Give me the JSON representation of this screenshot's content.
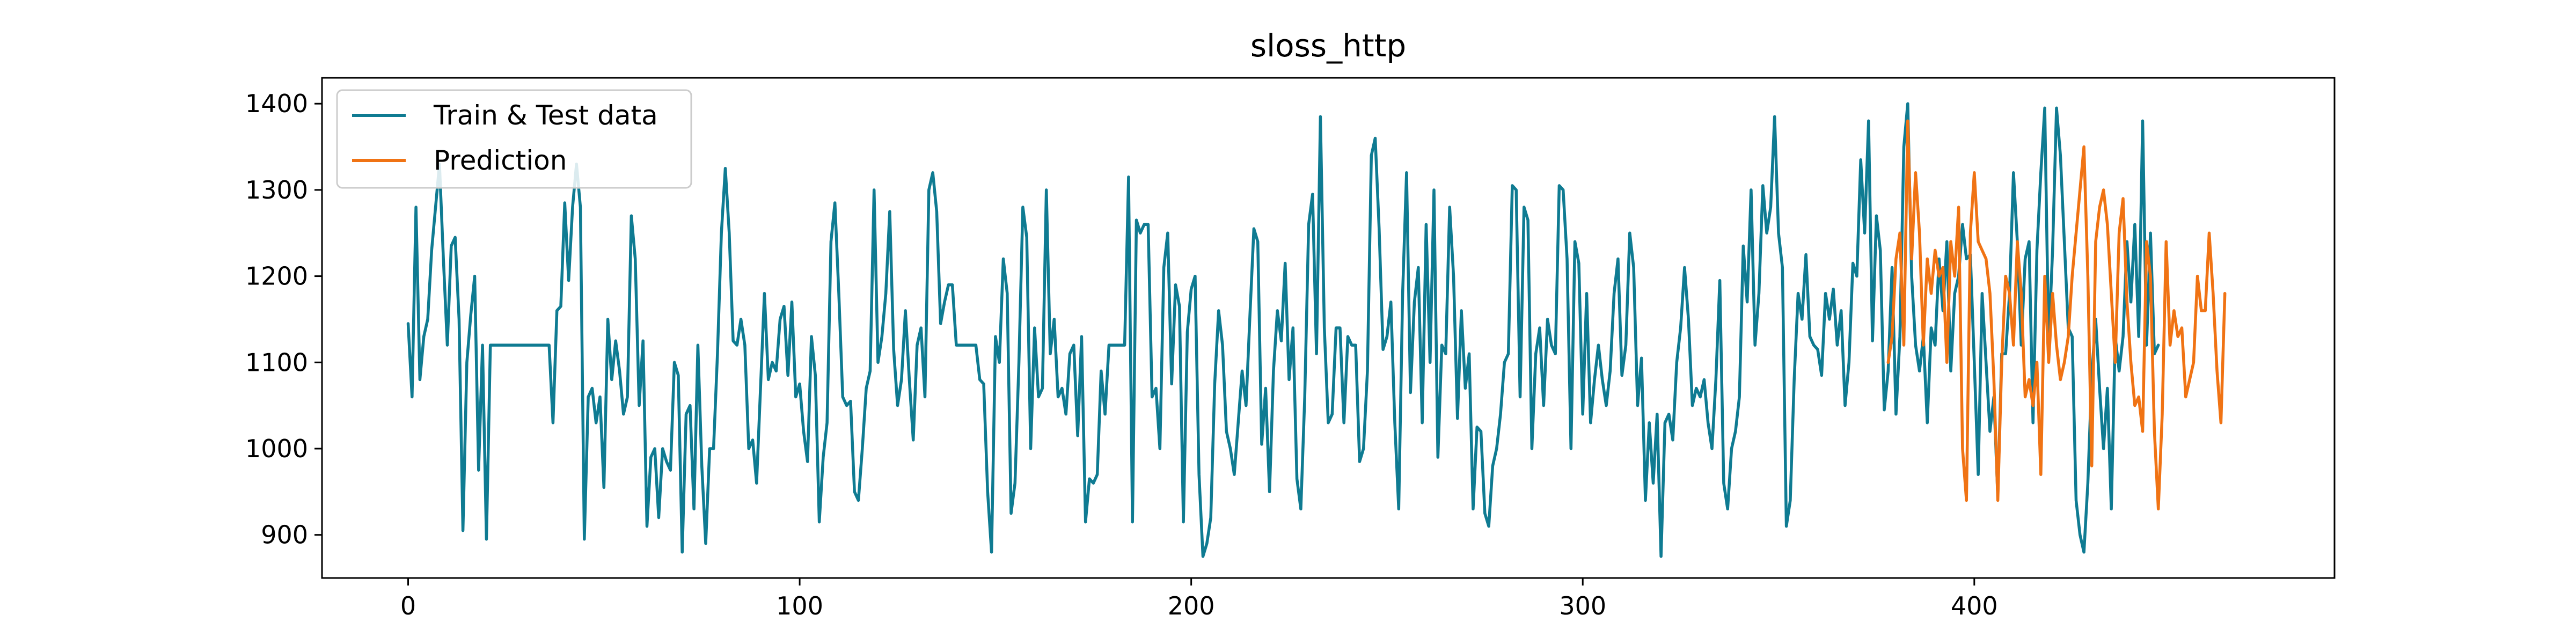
{
  "chart_data": {
    "type": "line",
    "title": "sloss_http",
    "xlabel": "",
    "ylabel": "",
    "xlim": [
      -22,
      492
    ],
    "ylim": [
      850,
      1430
    ],
    "x_ticks": [
      0,
      100,
      200,
      300,
      400
    ],
    "y_ticks": [
      900,
      1000,
      1100,
      1200,
      1300,
      1400
    ],
    "grid": false,
    "legend_position": "top-left",
    "series": [
      {
        "name": "Train & Test data",
        "color": "#0f7b92",
        "x_start": 0,
        "values": [
          1145,
          1060,
          1280,
          1080,
          1130,
          1150,
          1230,
          1280,
          1330,
          1220,
          1120,
          1235,
          1245,
          1150,
          905,
          1100,
          1155,
          1200,
          975,
          1120,
          895,
          1120,
          1120,
          1120,
          1120,
          1120,
          1120,
          1120,
          1120,
          1120,
          1120,
          1120,
          1120,
          1120,
          1120,
          1120,
          1120,
          1030,
          1160,
          1165,
          1285,
          1195,
          1280,
          1330,
          1280,
          895,
          1060,
          1070,
          1030,
          1060,
          955,
          1150,
          1080,
          1125,
          1090,
          1040,
          1060,
          1270,
          1220,
          1050,
          1125,
          910,
          990,
          1000,
          920,
          1000,
          985,
          975,
          1100,
          1085,
          880,
          1040,
          1050,
          930,
          1120,
          980,
          890,
          1000,
          1000,
          1110,
          1250,
          1325,
          1250,
          1125,
          1120,
          1150,
          1120,
          1000,
          1010,
          960,
          1070,
          1180,
          1080,
          1100,
          1090,
          1150,
          1165,
          1085,
          1170,
          1060,
          1075,
          1020,
          985,
          1130,
          1085,
          915,
          990,
          1030,
          1240,
          1285,
          1180,
          1060,
          1050,
          1055,
          950,
          940,
          1000,
          1070,
          1090,
          1300,
          1100,
          1130,
          1180,
          1275,
          1115,
          1050,
          1080,
          1160,
          1080,
          1010,
          1120,
          1140,
          1060,
          1300,
          1320,
          1275,
          1145,
          1170,
          1190,
          1190,
          1120,
          1120,
          1120,
          1120,
          1120,
          1120,
          1080,
          1075,
          950,
          880,
          1130,
          1100,
          1220,
          1180,
          925,
          960,
          1100,
          1280,
          1245,
          1000,
          1140,
          1060,
          1070,
          1300,
          1110,
          1150,
          1060,
          1070,
          1040,
          1110,
          1120,
          1015,
          1130,
          915,
          965,
          960,
          970,
          1090,
          1040,
          1120,
          1120,
          1120,
          1120,
          1120,
          1315,
          915,
          1265,
          1250,
          1260,
          1260,
          1060,
          1070,
          1000,
          1210,
          1250,
          1075,
          1190,
          1165,
          915,
          1135,
          1185,
          1200,
          970,
          875,
          890,
          920,
          1075,
          1160,
          1120,
          1020,
          1000,
          970,
          1030,
          1090,
          1050,
          1155,
          1255,
          1240,
          1005,
          1070,
          950,
          1090,
          1160,
          1125,
          1215,
          1080,
          1140,
          965,
          930,
          1060,
          1260,
          1295,
          1110,
          1385,
          1140,
          1030,
          1040,
          1140,
          1140,
          1030,
          1130,
          1120,
          1120,
          985,
          1000,
          1090,
          1340,
          1360,
          1255,
          1115,
          1130,
          1170,
          1030,
          930,
          1180,
          1320,
          1065,
          1170,
          1210,
          1030,
          1260,
          1100,
          1300,
          990,
          1120,
          1110,
          1280,
          1200,
          1035,
          1160,
          1070,
          1110,
          930,
          1025,
          1020,
          925,
          910,
          980,
          1000,
          1040,
          1100,
          1110,
          1305,
          1300,
          1060,
          1280,
          1265,
          1000,
          1110,
          1140,
          1050,
          1150,
          1120,
          1110,
          1305,
          1300,
          1220,
          1000,
          1240,
          1215,
          1040,
          1180,
          1030,
          1080,
          1120,
          1080,
          1050,
          1090,
          1180,
          1220,
          1085,
          1120,
          1250,
          1210,
          1050,
          1105,
          940,
          1030,
          960,
          1040,
          875,
          1030,
          1040,
          1010,
          1100,
          1140,
          1210,
          1150,
          1050,
          1070,
          1060,
          1080,
          1030,
          1000,
          1080,
          1195,
          960,
          930,
          1000,
          1020,
          1060,
          1235,
          1170,
          1300,
          1120,
          1180,
          1305,
          1250,
          1280,
          1385,
          1250,
          1210,
          910,
          940,
          1080,
          1180,
          1150,
          1225,
          1130,
          1120,
          1115,
          1085,
          1180,
          1150,
          1185,
          1120,
          1160,
          1050,
          1100,
          1215,
          1200,
          1335,
          1250,
          1380,
          1125,
          1270,
          1230,
          1045,
          1090,
          1210,
          1040,
          1130,
          1350,
          1400,
          1200,
          1120,
          1090,
          1130,
          1030,
          1140,
          1120,
          1220,
          1160,
          1240,
          1090,
          1180,
          1200,
          1260,
          1220,
          1225,
          1100,
          970,
          1180,
          1100,
          1020,
          1060,
          945,
          1110,
          1110,
          1180,
          1320,
          1240,
          1120,
          1220,
          1240,
          1030,
          1230,
          1320,
          1395,
          1120,
          1230,
          1395,
          1340,
          1240,
          1140,
          1130,
          940,
          900,
          880,
          960,
          1085,
          1150,
          1070,
          1000,
          1070,
          930,
          1130,
          1090,
          1130,
          1240,
          1170,
          1260,
          1130,
          1380,
          1120,
          1250,
          1110,
          1120
        ]
      },
      {
        "name": "Prediction",
        "color": "#f07314",
        "x_start": 378,
        "values": [
          1100,
          1130,
          1220,
          1250,
          1120,
          1380,
          1220,
          1320,
          1250,
          1120,
          1220,
          1180,
          1230,
          1200,
          1210,
          1100,
          1240,
          1200,
          1280,
          1000,
          940,
          1250,
          1320,
          1240,
          1230,
          1220,
          1180,
          1080,
          940,
          1100,
          1200,
          1180,
          1120,
          1240,
          1180,
          1060,
          1080,
          1050,
          1100,
          970,
          1200,
          1100,
          1180,
          1120,
          1080,
          1100,
          1130,
          1200,
          1250,
          1300,
          1350,
          1200,
          980,
          1240,
          1280,
          1300,
          1260,
          1180,
          1100,
          1250,
          1290,
          1170,
          1100,
          1050,
          1060,
          1020,
          1240,
          1200,
          1020,
          930,
          1040,
          1240,
          1120,
          1160,
          1130,
          1140,
          1060,
          1080,
          1100,
          1200,
          1160,
          1160,
          1250,
          1180,
          1090,
          1030,
          1180
        ]
      }
    ]
  }
}
